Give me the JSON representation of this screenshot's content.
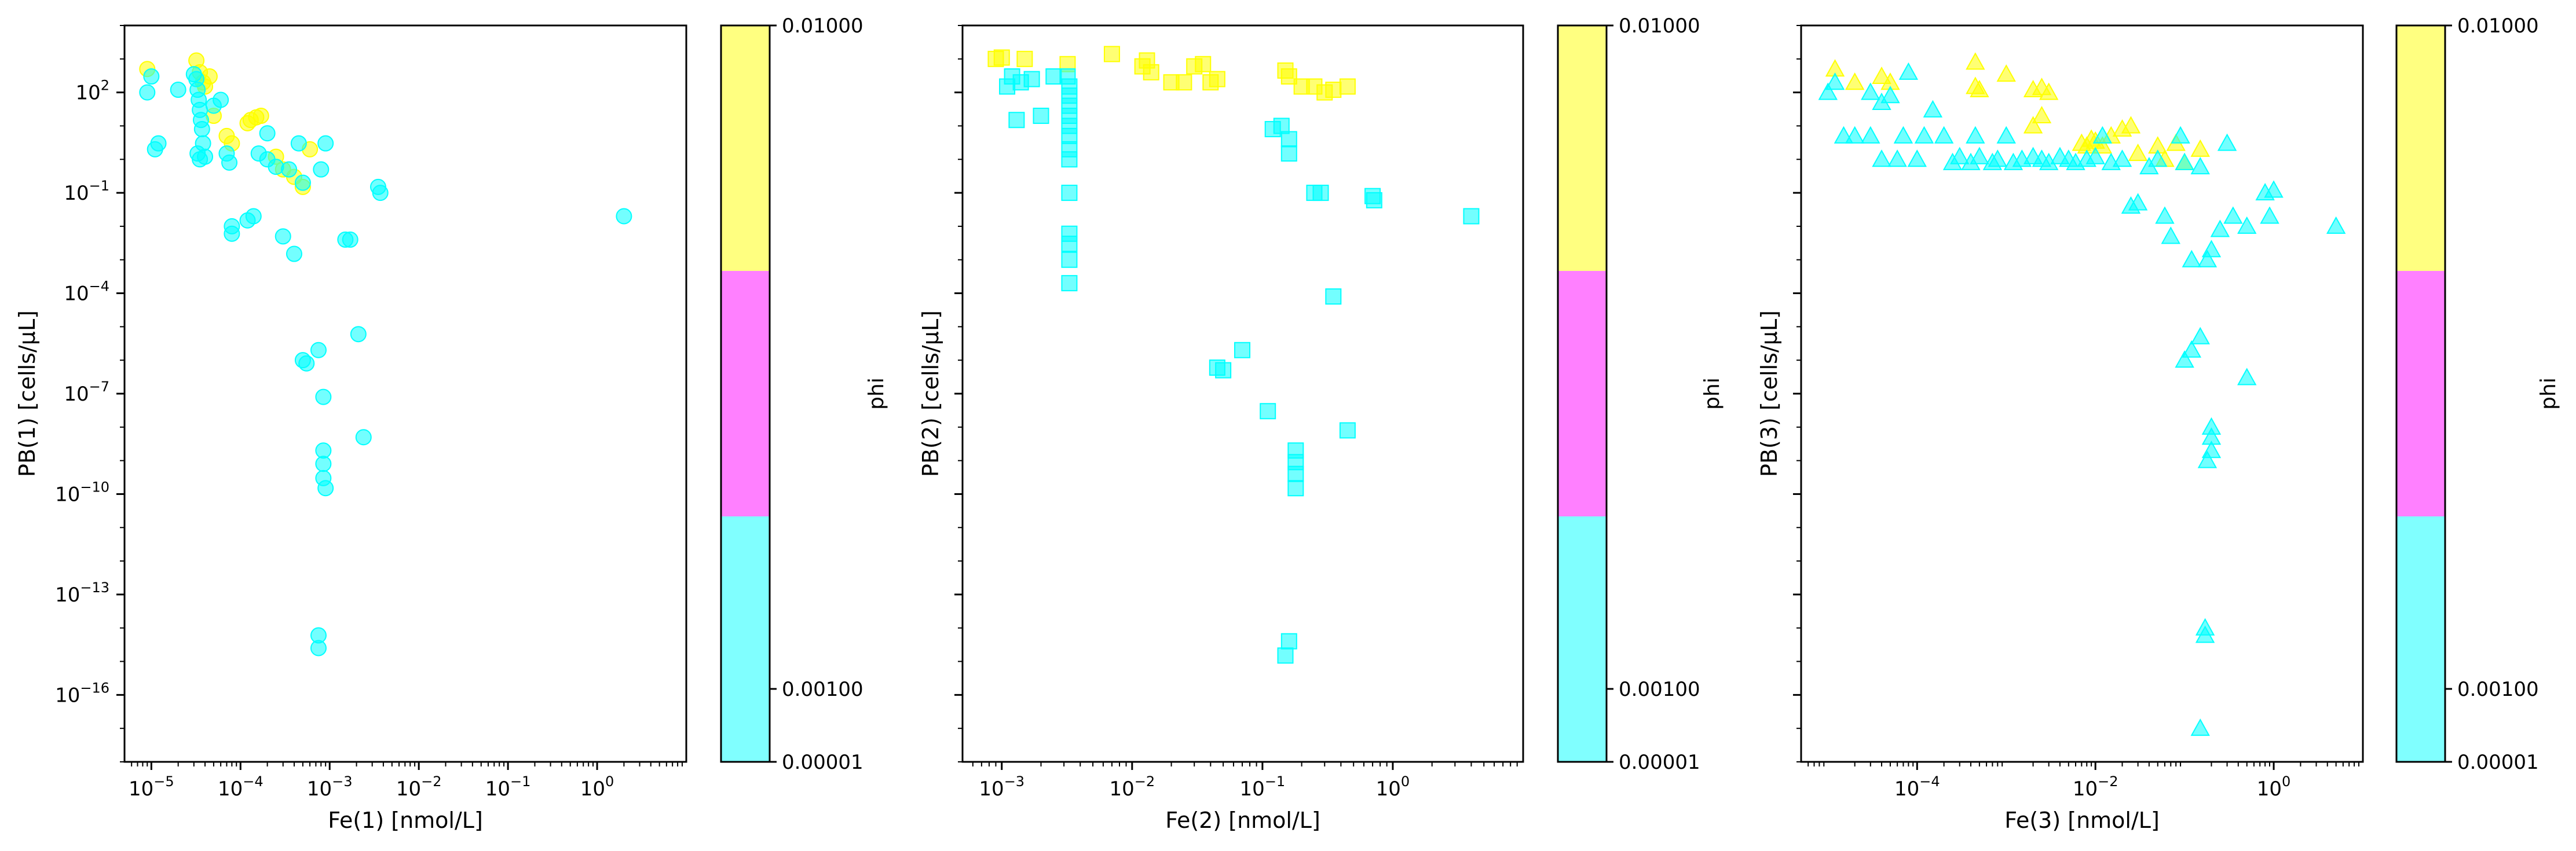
{
  "chart_data": [
    {
      "type": "scatter",
      "xlabel": "Fe(1) [nmol/L]",
      "ylabel": "PB(1) [cells/μL]",
      "xscale": "log",
      "yscale": "log",
      "xlim": [
        5e-06,
        10
      ],
      "ylim": [
        1e-18,
        10000.0
      ],
      "x_ticks": [
        {
          "value": 1e-05,
          "label": "10",
          "exp": "−5"
        },
        {
          "value": 0.0001,
          "label": "10",
          "exp": "−4"
        },
        {
          "value": 0.001,
          "label": "10",
          "exp": "−3"
        },
        {
          "value": 0.01,
          "label": "10",
          "exp": "−2"
        },
        {
          "value": 0.1,
          "label": "10",
          "exp": "−1"
        },
        {
          "value": 1,
          "label": "10",
          "exp": "0"
        }
      ],
      "y_ticks": [
        {
          "value": 1e-16,
          "label": "10",
          "exp": "−16"
        },
        {
          "value": 1e-13,
          "label": "10",
          "exp": "−13"
        },
        {
          "value": 1e-10,
          "label": "10",
          "exp": "−10"
        },
        {
          "value": 1e-07,
          "label": "10",
          "exp": "−7"
        },
        {
          "value": 0.0001,
          "label": "10",
          "exp": "−4"
        },
        {
          "value": 0.1,
          "label": "10",
          "exp": "−1"
        },
        {
          "value": 100,
          "label": "10",
          "exp": "2"
        }
      ],
      "show_y_tick_labels": true,
      "marker": "circle",
      "series": [
        {
          "phi_bin": "high",
          "color": "#ffff00",
          "points": [
            [
              9e-06,
              500
            ],
            [
              3.2e-05,
              900
            ],
            [
              3.5e-05,
              400
            ],
            [
              3.8e-05,
              200
            ],
            [
              4e-05,
              150
            ],
            [
              4.5e-05,
              300
            ],
            [
              5e-05,
              20
            ],
            [
              7e-05,
              5
            ],
            [
              8e-05,
              3
            ],
            [
              0.00012,
              12
            ],
            [
              0.00013,
              15
            ],
            [
              0.00015,
              18
            ],
            [
              0.00017,
              20
            ],
            [
              0.00025,
              1.2
            ],
            [
              0.0003,
              0.5
            ],
            [
              0.0004,
              0.3
            ],
            [
              0.0005,
              0.15
            ],
            [
              0.0006,
              2
            ]
          ]
        },
        {
          "phi_bin": "low",
          "color": "#00ffff",
          "points": [
            [
              9e-06,
              100
            ],
            [
              1e-05,
              300
            ],
            [
              1.1e-05,
              2
            ],
            [
              1.2e-05,
              3
            ],
            [
              2e-05,
              120
            ],
            [
              3e-05,
              350
            ],
            [
              3.2e-05,
              250
            ],
            [
              3.3e-05,
              120
            ],
            [
              3.4e-05,
              60
            ],
            [
              3.5e-05,
              30
            ],
            [
              3.6e-05,
              15
            ],
            [
              3.7e-05,
              8
            ],
            [
              3.8e-05,
              3
            ],
            [
              3.3e-05,
              1.5
            ],
            [
              3.5e-05,
              1
            ],
            [
              4e-05,
              1.2
            ],
            [
              5e-05,
              40
            ],
            [
              6e-05,
              60
            ],
            [
              7e-05,
              1.5
            ],
            [
              7.5e-05,
              0.8
            ],
            [
              8e-05,
              0.01
            ],
            [
              8e-05,
              0.006
            ],
            [
              0.00012,
              0.015
            ],
            [
              0.00014,
              0.02
            ],
            [
              0.00016,
              1.5
            ],
            [
              0.0002,
              1
            ],
            [
              0.0002,
              6
            ],
            [
              0.00025,
              0.6
            ],
            [
              0.0003,
              0.005
            ],
            [
              0.00035,
              0.5
            ],
            [
              0.0004,
              0.0015
            ],
            [
              0.00045,
              3
            ],
            [
              0.0005,
              0.2
            ],
            [
              0.0005,
              1e-06
            ],
            [
              0.00055,
              8e-07
            ],
            [
              0.00075,
              2e-06
            ],
            [
              0.0008,
              0.5
            ],
            [
              0.00085,
              8e-08
            ],
            [
              0.00085,
              2e-09
            ],
            [
              0.00085,
              8e-10
            ],
            [
              0.00085,
              3e-10
            ],
            [
              0.0009,
              1.5e-10
            ],
            [
              0.0009,
              3
            ],
            [
              0.0015,
              0.004
            ],
            [
              0.0017,
              0.004
            ],
            [
              0.0021,
              6e-06
            ],
            [
              0.0024,
              5e-09
            ],
            [
              0.0035,
              0.15
            ],
            [
              0.0037,
              0.1
            ],
            [
              2,
              0.02
            ],
            [
              0.00075,
              6e-15
            ],
            [
              0.00075,
              2.5e-15
            ]
          ]
        }
      ]
    },
    {
      "type": "scatter",
      "xlabel": "Fe(2) [nmol/L]",
      "ylabel": "PB(2) [cells/μL]",
      "xscale": "log",
      "yscale": "log",
      "xlim": [
        0.0005,
        10
      ],
      "ylim": [
        1e-18,
        10000.0
      ],
      "x_ticks": [
        {
          "value": 0.001,
          "label": "10",
          "exp": "−3"
        },
        {
          "value": 0.01,
          "label": "10",
          "exp": "−2"
        },
        {
          "value": 0.1,
          "label": "10",
          "exp": "−1"
        },
        {
          "value": 1,
          "label": "10",
          "exp": "0"
        }
      ],
      "show_y_tick_labels": false,
      "marker": "square",
      "series": [
        {
          "phi_bin": "high",
          "color": "#ffff00",
          "points": [
            [
              0.0009,
              1000
            ],
            [
              0.001,
              1100
            ],
            [
              0.0015,
              1000
            ],
            [
              0.0032,
              700
            ],
            [
              0.007,
              1400
            ],
            [
              0.012,
              600
            ],
            [
              0.013,
              900
            ],
            [
              0.014,
              400
            ],
            [
              0.02,
              200
            ],
            [
              0.025,
              200
            ],
            [
              0.03,
              600
            ],
            [
              0.035,
              700
            ],
            [
              0.04,
              200
            ],
            [
              0.045,
              250
            ],
            [
              0.15,
              450
            ],
            [
              0.16,
              300
            ],
            [
              0.2,
              150
            ],
            [
              0.25,
              150
            ],
            [
              0.3,
              100
            ],
            [
              0.35,
              120
            ],
            [
              0.45,
              150
            ]
          ]
        },
        {
          "phi_bin": "low",
          "color": "#00ffff",
          "points": [
            [
              0.0011,
              150
            ],
            [
              0.0012,
              300
            ],
            [
              0.0014,
              200
            ],
            [
              0.0017,
              250
            ],
            [
              0.0025,
              300
            ],
            [
              0.0013,
              15
            ],
            [
              0.002,
              20
            ],
            [
              0.0032,
              300
            ],
            [
              0.0033,
              150
            ],
            [
              0.0033,
              80
            ],
            [
              0.0033,
              40
            ],
            [
              0.0033,
              20
            ],
            [
              0.0033,
              10
            ],
            [
              0.0033,
              5
            ],
            [
              0.0033,
              2
            ],
            [
              0.0033,
              1
            ],
            [
              0.0033,
              0.1
            ],
            [
              0.0033,
              0.006
            ],
            [
              0.0033,
              0.003
            ],
            [
              0.0033,
              0.001
            ],
            [
              0.0033,
              0.0002
            ],
            [
              0.12,
              8
            ],
            [
              0.14,
              10
            ],
            [
              0.16,
              4
            ],
            [
              0.16,
              1.5
            ],
            [
              0.25,
              0.1
            ],
            [
              0.28,
              0.1
            ],
            [
              0.7,
              0.08
            ],
            [
              0.72,
              0.06
            ],
            [
              4,
              0.02
            ],
            [
              0.35,
              8e-05
            ],
            [
              0.07,
              2e-06
            ],
            [
              0.05,
              5e-07
            ],
            [
              0.045,
              6e-07
            ],
            [
              0.11,
              3e-08
            ],
            [
              0.45,
              8e-09
            ],
            [
              0.18,
              2e-09
            ],
            [
              0.18,
              9e-10
            ],
            [
              0.18,
              4e-10
            ],
            [
              0.18,
              1.5e-10
            ],
            [
              0.16,
              4e-15
            ],
            [
              0.15,
              1.5e-15
            ]
          ]
        }
      ]
    },
    {
      "type": "scatter",
      "xlabel": "Fe(3) [nmol/L]",
      "ylabel": "PB(3) [cells/μL]",
      "xscale": "log",
      "yscale": "log",
      "xlim": [
        5e-06,
        10
      ],
      "ylim": [
        1e-18,
        10000.0
      ],
      "x_ticks": [
        {
          "value": 0.0001,
          "label": "10",
          "exp": "−4"
        },
        {
          "value": 0.01,
          "label": "10",
          "exp": "−2"
        },
        {
          "value": 1,
          "label": "10",
          "exp": "0"
        }
      ],
      "show_y_tick_labels": false,
      "marker": "triangle",
      "series": [
        {
          "phi_bin": "high",
          "color": "#ffff00",
          "points": [
            [
              1.2e-05,
              500
            ],
            [
              2e-05,
              200
            ],
            [
              4e-05,
              300
            ],
            [
              5e-05,
              200
            ],
            [
              0.00045,
              800
            ],
            [
              0.00045,
              150
            ],
            [
              0.0005,
              120
            ],
            [
              0.001,
              350
            ],
            [
              0.002,
              120
            ],
            [
              0.0025,
              140
            ],
            [
              0.003,
              100
            ],
            [
              0.002,
              10
            ],
            [
              0.0025,
              20
            ],
            [
              0.007,
              3
            ],
            [
              0.008,
              2.5
            ],
            [
              0.009,
              4
            ],
            [
              0.01,
              3.5
            ],
            [
              0.012,
              2.5
            ],
            [
              0.015,
              5
            ],
            [
              0.02,
              8
            ],
            [
              0.025,
              10
            ],
            [
              0.03,
              1.5
            ],
            [
              0.05,
              2.5
            ],
            [
              0.06,
              1
            ],
            [
              0.08,
              3
            ],
            [
              0.1,
              0.8
            ],
            [
              0.15,
              2
            ]
          ]
        },
        {
          "phi_bin": "low",
          "color": "#00ffff",
          "points": [
            [
              1e-05,
              100
            ],
            [
              1.2e-05,
              200
            ],
            [
              1.5e-05,
              5
            ],
            [
              2e-05,
              5
            ],
            [
              3e-05,
              100
            ],
            [
              3e-05,
              5
            ],
            [
              4e-05,
              1
            ],
            [
              4e-05,
              50
            ],
            [
              5e-05,
              80
            ],
            [
              6e-05,
              1
            ],
            [
              7e-05,
              5
            ],
            [
              8e-05,
              400
            ],
            [
              0.0001,
              1
            ],
            [
              0.00012,
              5
            ],
            [
              0.00015,
              30
            ],
            [
              0.0002,
              5
            ],
            [
              0.00025,
              0.8
            ],
            [
              0.0003,
              1.2
            ],
            [
              0.0004,
              0.8
            ],
            [
              0.00045,
              5
            ],
            [
              0.0005,
              1.2
            ],
            [
              0.0007,
              0.8
            ],
            [
              0.0008,
              1
            ],
            [
              0.001,
              5
            ],
            [
              0.0012,
              0.8
            ],
            [
              0.0015,
              1
            ],
            [
              0.002,
              1.2
            ],
            [
              0.0025,
              1
            ],
            [
              0.003,
              0.8
            ],
            [
              0.004,
              1.2
            ],
            [
              0.005,
              1
            ],
            [
              0.006,
              0.8
            ],
            [
              0.008,
              1
            ],
            [
              0.01,
              1.2
            ],
            [
              0.012,
              5
            ],
            [
              0.015,
              0.8
            ],
            [
              0.02,
              1
            ],
            [
              0.025,
              0.04
            ],
            [
              0.03,
              0.05
            ],
            [
              0.04,
              0.6
            ],
            [
              0.05,
              1
            ],
            [
              0.06,
              0.02
            ],
            [
              0.07,
              0.005
            ],
            [
              0.09,
              5
            ],
            [
              0.1,
              0.8
            ],
            [
              0.12,
              0.001
            ],
            [
              0.15,
              0.6
            ],
            [
              0.18,
              0.001
            ],
            [
              0.2,
              0.002
            ],
            [
              0.25,
              0.008
            ],
            [
              0.3,
              3
            ],
            [
              0.35,
              0.02
            ],
            [
              0.5,
              0.01
            ],
            [
              0.8,
              0.1
            ],
            [
              0.9,
              0.02
            ],
            [
              1,
              0.12
            ],
            [
              5,
              0.01
            ],
            [
              0.1,
              1e-06
            ],
            [
              0.12,
              2e-06
            ],
            [
              0.15,
              5e-06
            ],
            [
              0.5,
              3e-07
            ],
            [
              0.2,
              1e-08
            ],
            [
              0.2,
              5e-09
            ],
            [
              0.2,
              2e-09
            ],
            [
              0.18,
              1e-09
            ],
            [
              0.17,
              1e-14
            ],
            [
              0.17,
              6e-15
            ],
            [
              0.15,
              1e-17
            ]
          ]
        }
      ]
    }
  ],
  "colorbar": {
    "label": "phi",
    "colors": [
      "#80ffff",
      "#ff80ff",
      "#ffff80"
    ],
    "tick_labels": [
      "0.01000",
      "0.00100",
      "0.00001"
    ]
  }
}
